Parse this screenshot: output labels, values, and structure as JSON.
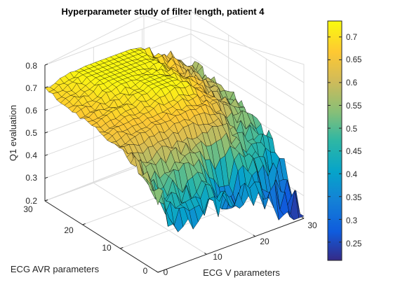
{
  "chart_data": {
    "type": "surface",
    "title": "Hyperparameter study of filter length, patient 4",
    "xlabel": "ECG V parameters",
    "ylabel": "ECG AVR parameters",
    "zlabel": "Q1 evaluation",
    "xlim": [
      0,
      30
    ],
    "ylim": [
      0,
      30
    ],
    "zlim": [
      0.2,
      0.8
    ],
    "x_ticks": [
      "0",
      "10",
      "20",
      "30"
    ],
    "y_ticks": [
      "0",
      "10",
      "20",
      "30"
    ],
    "z_ticks": [
      "0.2",
      "0.3",
      "0.4",
      "0.5",
      "0.6",
      "0.7",
      "0.8"
    ],
    "colormap": "parula",
    "colorbar": {
      "min": 0.21,
      "max": 0.735,
      "ticks": [
        "0.25",
        "0.3",
        "0.35",
        "0.4",
        "0.45",
        "0.5",
        "0.55",
        "0.6",
        "0.65",
        "0.7"
      ]
    },
    "grid_size": [
      30,
      30
    ],
    "surface_summary": {
      "max_value": 0.73,
      "min_value": 0.21,
      "plateau_region": "ECG V 0-20, ECG AVR 12-30, Q1 about 0.65-0.73",
      "edge_at_ecg_v_0": "Q1 about 0.55-0.63",
      "low_region": "ECG V 2-25 with ECG AVR 0-10, Q1 drops toward 0.21-0.35",
      "dips": [
        {
          "ecg_v": 17,
          "ecg_avr": 4,
          "q1": 0.21
        },
        {
          "ecg_v": 25,
          "ecg_avr": 10,
          "q1": 0.37
        },
        {
          "ecg_v": 27,
          "ecg_avr": 14,
          "q1": 0.42
        }
      ]
    }
  },
  "colors": {
    "parula": [
      "#352a87",
      "#0f5cdd",
      "#1481d6",
      "#06a4ca",
      "#2eb7a4",
      "#87bf77",
      "#d1bb59",
      "#fec832",
      "#f9fb0e"
    ],
    "edge": "#000000",
    "axes": "#262626",
    "grid": "#dcdcdc"
  }
}
